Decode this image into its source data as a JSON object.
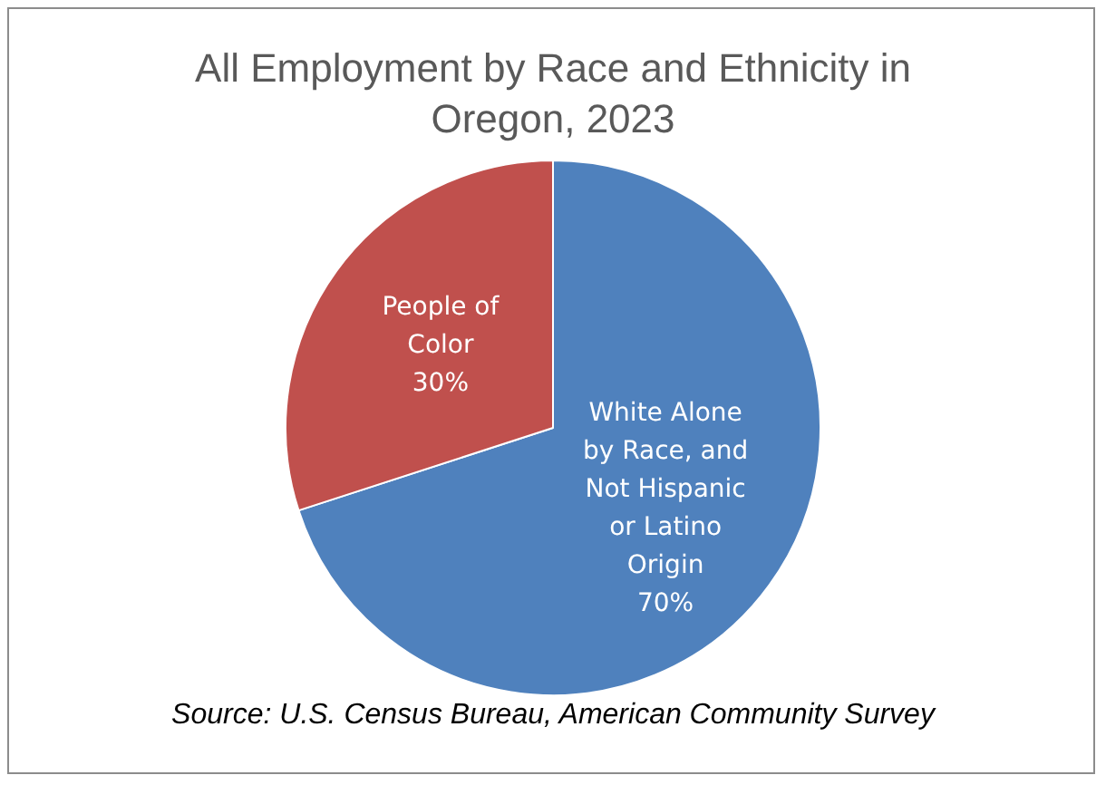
{
  "chart_data": {
    "type": "pie",
    "title": "All Employment by Race and Ethnicity in Oregon, 2023",
    "categories": [
      "White Alone by Race, and Not Hispanic or Latino Origin",
      "People of Color"
    ],
    "values": [
      70,
      30
    ],
    "colors": [
      "#4f81bd",
      "#c0504d"
    ],
    "value_labels": [
      "70%",
      "30%"
    ],
    "legend": false,
    "annotations": [
      "Source: U.S. Census Bureau, American Community Survey"
    ]
  }
}
